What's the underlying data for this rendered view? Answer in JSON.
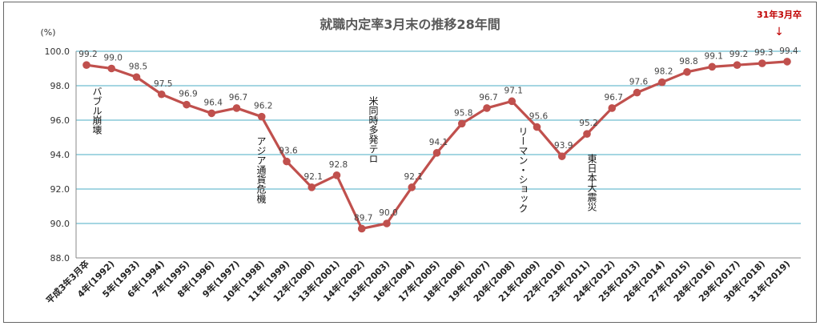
{
  "chart_data": {
    "type": "line",
    "title": "就職内定率3月末の推移28年間",
    "ylabel": "(%)",
    "xlabel": "",
    "ylim": [
      88.0,
      100.0
    ],
    "yticks": [
      "88.0",
      "90.0",
      "92.0",
      "94.0",
      "96.0",
      "98.0",
      "100.0"
    ],
    "grid": true,
    "categories": [
      "平成3年3月卒",
      "4年(1992)",
      "5年(1993)",
      "6年(1994)",
      "7年(1995)",
      "8年(1996)",
      "9年(1997)",
      "10年(1998)",
      "11年(1999)",
      "12年(2000)",
      "13年(2001)",
      "14年(2002)",
      "15年(2003)",
      "16年(2004)",
      "17年(2005)",
      "18年(2006)",
      "19年(2007)",
      "20年(2008)",
      "21年(2009)",
      "22年(2010)",
      "23年(2011)",
      "24年(2012)",
      "25年(2013)",
      "26年(2014)",
      "27年(2015)",
      "28年(2016)",
      "29年(2017)",
      "30年(2018)",
      "31年(2019)"
    ],
    "values": [
      99.2,
      99.0,
      98.5,
      97.5,
      96.9,
      96.4,
      96.7,
      96.2,
      93.6,
      92.1,
      92.8,
      89.7,
      90.0,
      92.1,
      94.1,
      95.8,
      96.7,
      97.1,
      95.6,
      93.9,
      95.2,
      96.7,
      97.6,
      98.2,
      98.8,
      99.1,
      99.2,
      99.3,
      99.4
    ],
    "value_labels": [
      "99.2",
      "99.0",
      "98.5",
      "97.5",
      "96.9",
      "96.4",
      "96.7",
      "96.2",
      "93.6",
      "92.1",
      "92.8",
      "89.7",
      "90.0",
      "92.1",
      "94.1",
      "95.8",
      "96.7",
      "97.1",
      "95.6",
      "93.9",
      "95.2",
      "96.7",
      "97.6",
      "98.2",
      "98.8",
      "99.1",
      "99.2",
      "99.3",
      "99.4"
    ],
    "annotations": [
      {
        "text": "バブル崩壊",
        "index": 0
      },
      {
        "text": "アジア通貨危機",
        "index": 7
      },
      {
        "text": "米同時多発テロ",
        "index": 10
      },
      {
        "text": "リーマン・ショック",
        "index": 17
      },
      {
        "text": "東日本大震災",
        "index": 19
      }
    ],
    "callout": {
      "text": "31年3月卒",
      "arrow": "↓",
      "index": 28
    }
  },
  "colors": {
    "line": "#c0504d",
    "grid": "#4bacc6",
    "callout": "#c00000"
  }
}
